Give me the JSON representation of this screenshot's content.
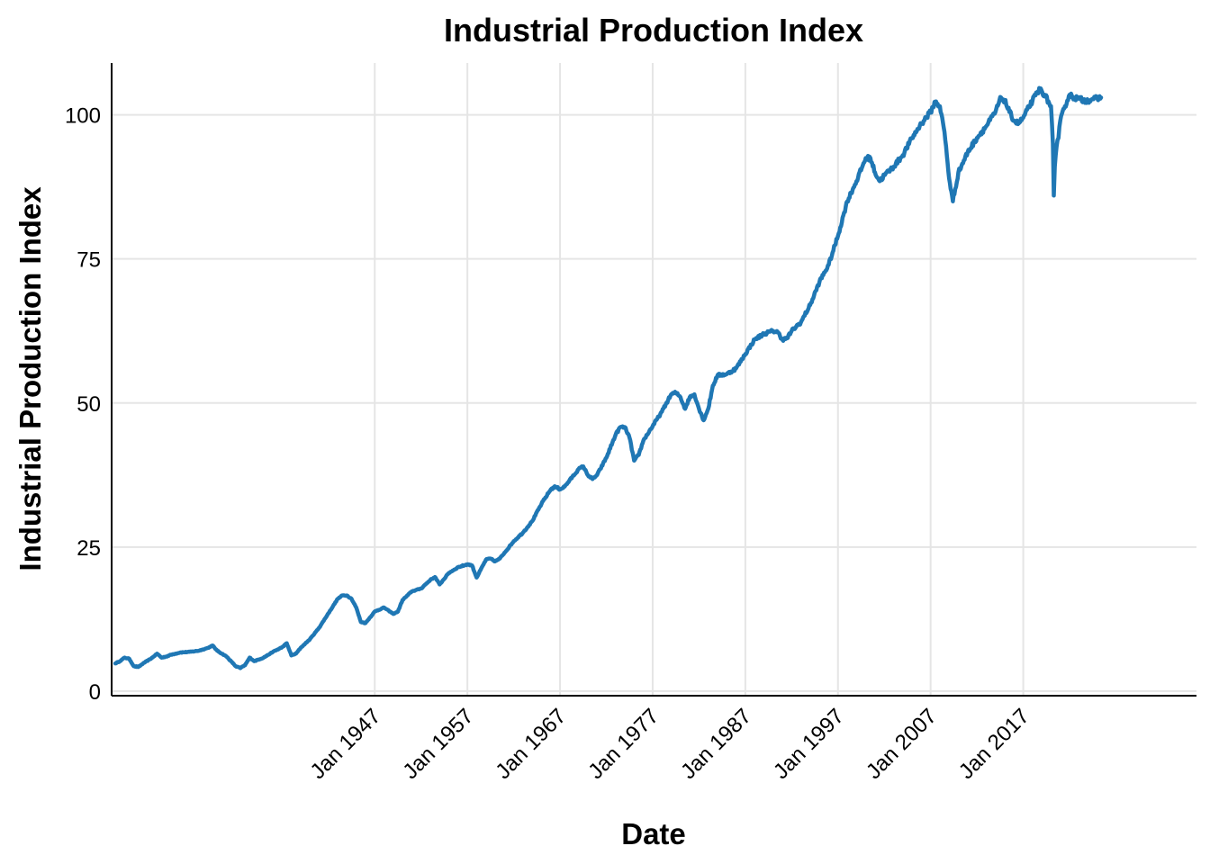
{
  "chart_data": {
    "type": "line",
    "title": "Industrial Production Index",
    "xlabel": "Date",
    "ylabel": "Industrial Production Index",
    "xlim": [
      1918.6,
      2035.7
    ],
    "ylim": [
      -0.8,
      109
    ],
    "yticks": [
      0,
      25,
      50,
      75,
      100
    ],
    "xticks": [
      {
        "label": "Jan 1947",
        "value": 1947
      },
      {
        "label": "Jan 1957",
        "value": 1957
      },
      {
        "label": "Jan 1967",
        "value": 1967
      },
      {
        "label": "Jan 1977",
        "value": 1977
      },
      {
        "label": "Jan 1987",
        "value": 1987
      },
      {
        "label": "Jan 1997",
        "value": 1997
      },
      {
        "label": "Jan 2007",
        "value": 2007
      },
      {
        "label": "Jan 2017",
        "value": 2017
      }
    ],
    "grid": true,
    "color": "#1f77b4",
    "series": [
      {
        "name": "Industrial Production Index",
        "x": [
          1919.0,
          1919.5,
          1920.0,
          1920.5,
          1921.0,
          1921.5,
          1922.0,
          1923.0,
          1923.5,
          1924.0,
          1924.5,
          1925.0,
          1926.0,
          1927.0,
          1928.0,
          1929.0,
          1929.5,
          1930.0,
          1931.0,
          1932.0,
          1932.5,
          1933.0,
          1933.5,
          1934.0,
          1935.0,
          1936.0,
          1937.0,
          1937.5,
          1938.0,
          1938.5,
          1939.0,
          1940.0,
          1941.0,
          1942.0,
          1943.0,
          1943.5,
          1944.0,
          1944.5,
          1945.0,
          1945.5,
          1946.0,
          1947.0,
          1948.0,
          1949.0,
          1949.5,
          1950.0,
          1951.0,
          1952.0,
          1953.0,
          1953.5,
          1954.0,
          1955.0,
          1956.0,
          1957.0,
          1957.5,
          1958.0,
          1959.0,
          1959.5,
          1960.0,
          1960.5,
          1961.0,
          1962.0,
          1963.0,
          1964.0,
          1965.0,
          1966.0,
          1966.5,
          1967.0,
          1967.5,
          1968.0,
          1969.0,
          1969.5,
          1970.0,
          1970.5,
          1971.0,
          1972.0,
          1973.0,
          1973.5,
          1974.0,
          1974.5,
          1975.0,
          1975.5,
          1976.0,
          1977.0,
          1978.0,
          1979.0,
          1979.5,
          1980.0,
          1980.5,
          1981.0,
          1981.5,
          1982.0,
          1982.5,
          1983.0,
          1983.5,
          1984.0,
          1985.0,
          1986.0,
          1987.0,
          1988.0,
          1989.0,
          1990.0,
          1990.5,
          1991.0,
          1991.5,
          1992.0,
          1993.0,
          1994.0,
          1995.0,
          1996.0,
          1997.0,
          1998.0,
          1999.0,
          2000.0,
          2000.5,
          2001.0,
          2001.5,
          2002.0,
          2003.0,
          2004.0,
          2005.0,
          2006.0,
          2007.0,
          2007.5,
          2008.0,
          2008.5,
          2009.0,
          2009.4,
          2010.0,
          2011.0,
          2012.0,
          2013.0,
          2014.0,
          2014.6,
          2015.0,
          2015.5,
          2016.0,
          2016.5,
          2017.0,
          2018.0,
          2018.8,
          2019.3,
          2019.8,
          2020.0,
          2020.2,
          2020.3,
          2020.4,
          2020.6,
          2020.8,
          2021.0,
          2021.5,
          2022.0,
          2022.5,
          2023.0,
          2023.5,
          2024.0,
          2024.5,
          2025.0,
          2025.4
        ],
        "y": [
          4.8,
          5.2,
          5.8,
          5.6,
          4.3,
          4.2,
          4.8,
          5.8,
          6.5,
          5.8,
          6.0,
          6.3,
          6.7,
          6.8,
          7.0,
          7.5,
          7.9,
          7.0,
          6.0,
          4.3,
          4.0,
          4.5,
          5.8,
          5.2,
          5.8,
          6.8,
          7.6,
          8.3,
          6.2,
          6.5,
          7.5,
          9.0,
          11.0,
          13.5,
          16.0,
          16.6,
          16.6,
          16.0,
          14.5,
          12.0,
          11.8,
          13.8,
          14.5,
          13.4,
          13.8,
          15.8,
          17.3,
          17.8,
          19.3,
          19.8,
          18.5,
          20.5,
          21.5,
          22.0,
          21.8,
          19.7,
          22.8,
          23.0,
          22.5,
          23.0,
          24.0,
          26.0,
          27.5,
          29.5,
          32.5,
          35.0,
          35.5,
          35.0,
          35.5,
          36.5,
          38.5,
          39.0,
          37.5,
          36.8,
          37.5,
          40.5,
          44.5,
          45.8,
          45.8,
          44.0,
          40.0,
          41.0,
          43.5,
          46.0,
          48.5,
          51.5,
          51.8,
          51.0,
          49.0,
          51.0,
          51.5,
          49.0,
          47.0,
          49.0,
          53.0,
          54.8,
          55.0,
          56.0,
          58.5,
          61.0,
          62.0,
          62.5,
          62.3,
          61.0,
          61.2,
          62.5,
          64.0,
          67.0,
          71.0,
          74.0,
          79.0,
          85.0,
          88.5,
          92.5,
          92.5,
          90.0,
          88.5,
          89.5,
          91.0,
          93.0,
          96.0,
          98.5,
          100.5,
          102.3,
          101.5,
          97.0,
          89.0,
          85.0,
          90.0,
          93.5,
          96.0,
          98.0,
          100.5,
          103.0,
          102.5,
          100.5,
          99.0,
          98.5,
          99.5,
          102.5,
          104.5,
          103.5,
          102.0,
          101.5,
          95.0,
          86.0,
          91.0,
          94.5,
          96.0,
          99.0,
          101.5,
          103.5,
          103.0,
          102.8,
          102.5,
          102.5,
          102.8,
          102.8,
          103.0
        ]
      }
    ]
  }
}
